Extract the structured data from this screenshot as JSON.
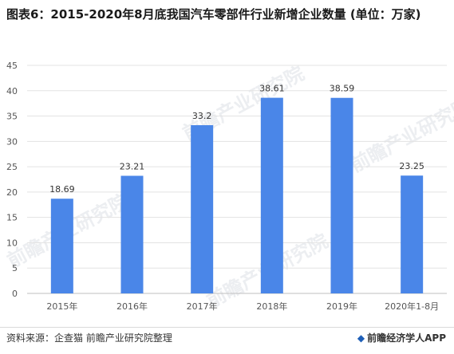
{
  "title": "图表6：2015-2020年8月底我国汽车零部件行业新增企业数量 (单位：万家)",
  "watermark_text": "前瞻产业研究院",
  "footer": {
    "source": "资料来源：企查猫 前瞻产业研究院整理",
    "brand": "前瞻经济学人APP"
  },
  "colors": {
    "bar": "#4a86e8"
  },
  "chart_data": {
    "type": "bar",
    "title": "图表6：2015-2020年8月底我国汽车零部件行业新增企业数量 (单位：万家)",
    "categories": [
      "2015年",
      "2016年",
      "2017年",
      "2018年",
      "2019年",
      "2020年1-8月"
    ],
    "values": [
      18.69,
      23.21,
      33.2,
      38.61,
      38.59,
      23.25
    ],
    "value_labels": [
      "18.69",
      "23.21",
      "33.2",
      "38.61",
      "38.59",
      "23.25"
    ],
    "ylim": [
      0,
      45
    ],
    "yticks": [
      0,
      5,
      10,
      15,
      20,
      25,
      30,
      35,
      40,
      45
    ],
    "grid": true,
    "legend": "none"
  }
}
